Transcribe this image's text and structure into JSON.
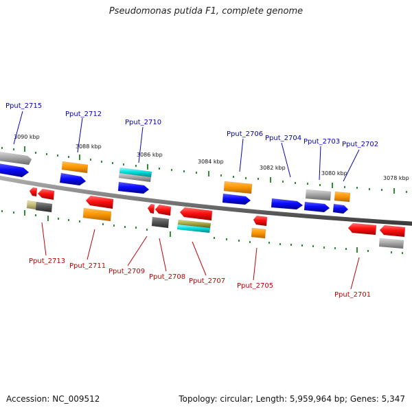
{
  "title": "Pseudomonas putida F1, complete genome",
  "accession": "Accession: NC_009512",
  "topology": "Topology: circular; Length: 5,959,964 bp; Genes: 5,347",
  "colors": {
    "forward_label": "#0000c0",
    "reverse_label": "#c00000",
    "backbone": "#7a7a7a",
    "tick": "#2e8b2e",
    "blue": "#0b0bff",
    "red": "#ff1010",
    "orange": "#ff9900",
    "gray": "#9a9a9a",
    "dark_gray": "#505050",
    "cyan": "#00dddd",
    "olive": "#9a9a33"
  },
  "scale_labels": [
    "3090 kbp",
    "3088 kbp",
    "3086 kbp",
    "3084 kbp",
    "3082 kbp",
    "3080 kbp",
    "3078 kbp"
  ],
  "forward_genes": [
    "Pput_2715",
    "Pput_2712",
    "Pput_2710",
    "Pput_2706",
    "Pput_2704",
    "Pput_2703",
    "Pput_2702"
  ],
  "reverse_genes": [
    "Pput_2713",
    "Pput_2711",
    "Pput_2709",
    "Pput_2708",
    "Pput_2707",
    "Pput_2705",
    "Pput_2701"
  ]
}
